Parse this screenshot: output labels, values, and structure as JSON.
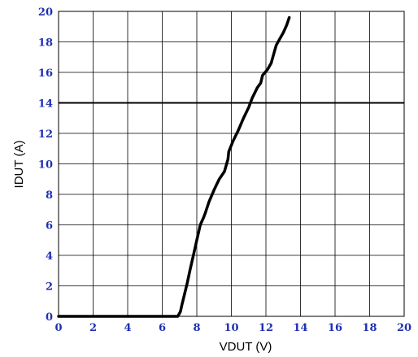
{
  "chart_data": {
    "type": "line",
    "title": "",
    "xlabel": "VDUT (V)",
    "ylabel": "IDUT (A)",
    "xlim": [
      0,
      20
    ],
    "ylim": [
      0,
      20
    ],
    "x_ticks": [
      "0",
      "2",
      "4",
      "6",
      "8",
      "10",
      "12",
      "14",
      "16",
      "18",
      "20"
    ],
    "y_ticks": [
      "0",
      "2",
      "4",
      "6",
      "8",
      "10",
      "12",
      "14",
      "16",
      "18",
      "20"
    ],
    "grid": true,
    "highlight_hline_y": 14,
    "colors": {
      "tick_labels": "#1f2fb3",
      "line": "#000000",
      "grid": "#000000"
    },
    "series": [
      {
        "x": [
          0,
          2,
          4,
          6,
          6.9,
          7.05,
          7.15,
          7.3,
          7.45,
          7.6,
          7.8,
          8.0,
          8.2,
          8.4,
          8.5,
          8.7,
          9.0,
          9.3,
          9.6,
          9.8,
          9.85,
          10.1,
          10.4,
          10.7,
          11.0,
          11.2,
          11.5,
          11.7,
          11.8,
          12.1,
          12.3,
          12.4,
          12.5,
          12.6,
          12.8,
          13.0,
          13.2,
          13.35
        ],
        "y": [
          0,
          0,
          0,
          0,
          0,
          0.3,
          0.8,
          1.5,
          2.2,
          3.0,
          4.0,
          5.0,
          6.0,
          6.5,
          6.8,
          7.5,
          8.3,
          9.0,
          9.5,
          10.3,
          10.8,
          11.5,
          12.2,
          13.0,
          13.7,
          14.3,
          15.0,
          15.3,
          15.8,
          16.2,
          16.6,
          17.0,
          17.4,
          17.8,
          18.2,
          18.6,
          19.1,
          19.6
        ]
      }
    ]
  }
}
